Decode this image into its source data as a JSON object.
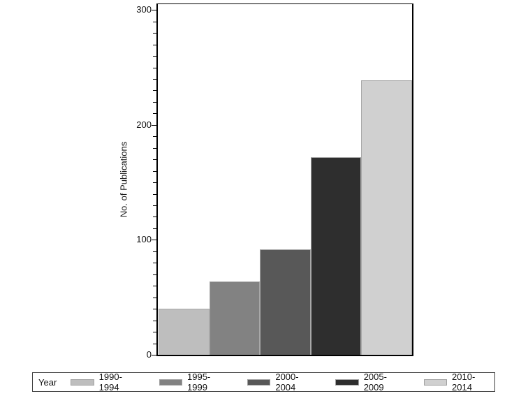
{
  "chart_data": {
    "type": "bar",
    "ylabel": "No. of Publications",
    "legend_title": "Year",
    "legend_position": "bottom",
    "grid": false,
    "categories": [
      "1990-1994",
      "1995-1999",
      "2000-2004",
      "2005-2009",
      "2010-2014"
    ],
    "values": [
      40,
      64,
      92,
      172,
      239
    ],
    "ylim": [
      0,
      305
    ],
    "yticks": [
      0,
      100,
      200,
      300
    ],
    "minor_tick_step": 10,
    "colors": {
      "bars": [
        "#bebebe",
        "#828282",
        "#585858",
        "#2e2e2e",
        "#d0d0d0"
      ],
      "bar_border": "#a8a8a8",
      "axis": "#000000",
      "text": "#1a1a1a",
      "background": "#ffffff"
    }
  }
}
